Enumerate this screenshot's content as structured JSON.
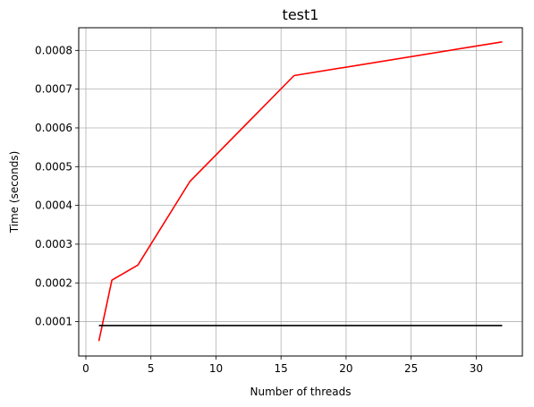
{
  "chart_data": {
    "type": "line",
    "title": "test1",
    "xlabel": "Number of threads",
    "ylabel": "Time (seconds)",
    "xlim": [
      -0.55,
      33.55
    ],
    "ylim": [
      1.13e-05,
      0.0008585
    ],
    "grid": true,
    "xticks": [
      0,
      5,
      10,
      15,
      20,
      25,
      30
    ],
    "yticks": [
      0.0001,
      0.0002,
      0.0003,
      0.0004,
      0.0005,
      0.0006,
      0.0007,
      0.0008
    ],
    "series": [
      {
        "color": "#ff0000",
        "x": [
          1,
          2,
          4,
          8,
          16,
          32
        ],
        "y": [
          5e-05,
          0.000207,
          0.000246,
          0.000462,
          0.000735,
          0.000822
        ]
      },
      {
        "color": "#000000",
        "x": [
          1,
          32
        ],
        "y": [
          9e-05,
          9e-05
        ]
      }
    ]
  }
}
